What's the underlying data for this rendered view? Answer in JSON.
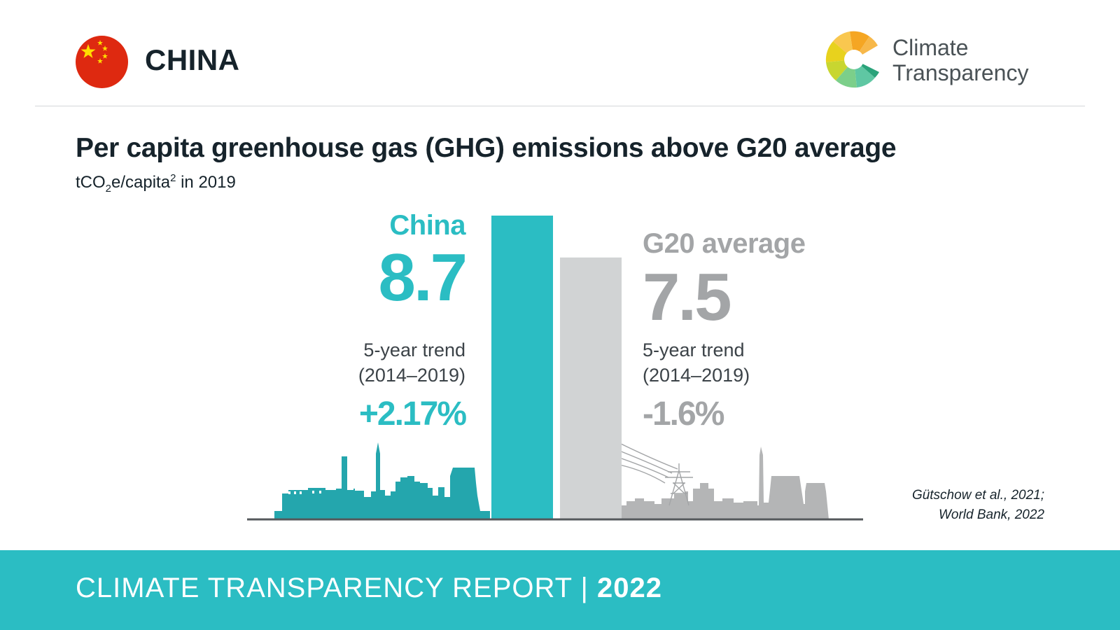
{
  "header": {
    "country": "CHINA",
    "logo_line1": "Climate",
    "logo_line2": "Transparency"
  },
  "title": "Per capita greenhouse gas (GHG) emissions above G20 average",
  "subtitle": {
    "pre": "tCO",
    "sub": "2",
    "mid": "e/capita",
    "sup": "2",
    "post": " in 2019"
  },
  "chart_data": {
    "type": "bar",
    "categories": [
      "China",
      "G20 average"
    ],
    "values": [
      8.7,
      7.5
    ],
    "value_labels": [
      "8.7",
      "7.5"
    ],
    "trend_label_line1": "5-year trend",
    "trend_label_line2": "(2014–2019)",
    "trends": [
      "+2.17%",
      "-1.6%"
    ],
    "colors": [
      "#2bbdc3",
      "#d1d3d4"
    ],
    "ylim": [
      0,
      8.7
    ],
    "grid": false,
    "legend": "none"
  },
  "source": {
    "line1": "Gütschow et al., 2021;",
    "line2": "World Bank, 2022"
  },
  "footer": {
    "text": "CLIMATE TRANSPARENCY REPORT | ",
    "year": "2022"
  },
  "colors": {
    "accent": "#2bbdc3",
    "grey_bar": "#d1d3d4",
    "grey_text": "#a3a5a7",
    "industry_teal": "#24a6ad",
    "industry_grey": "#b4b5b6"
  }
}
